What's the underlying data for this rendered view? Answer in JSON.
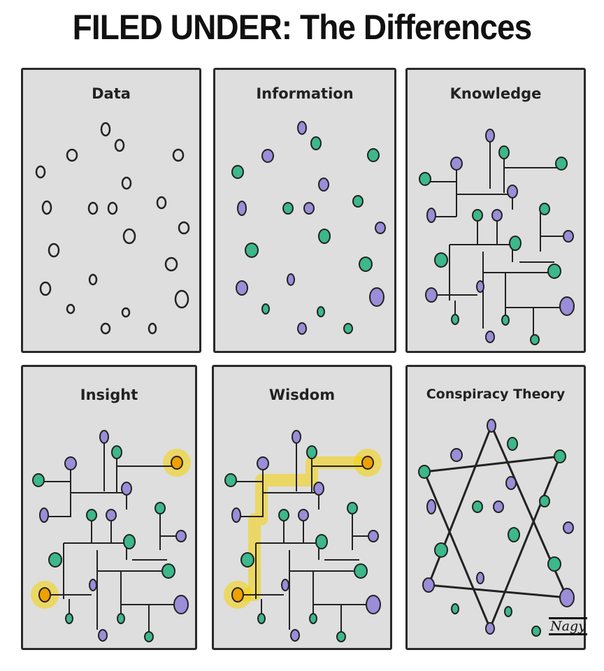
{
  "title": "FILED UNDER: The Differences",
  "colors": {
    "panel": "#dedede",
    "green": "#3cb88a",
    "purple": "#9b8dd8",
    "highlight": "#f5d100",
    "line": "#222222"
  },
  "panels": [
    {
      "label": "Data"
    },
    {
      "label": "Information"
    },
    {
      "label": "Knowledge"
    },
    {
      "label": "Insight"
    },
    {
      "label": "Wisdom"
    },
    {
      "label": "Conspiracy Theory"
    }
  ],
  "signature": "Nagy"
}
